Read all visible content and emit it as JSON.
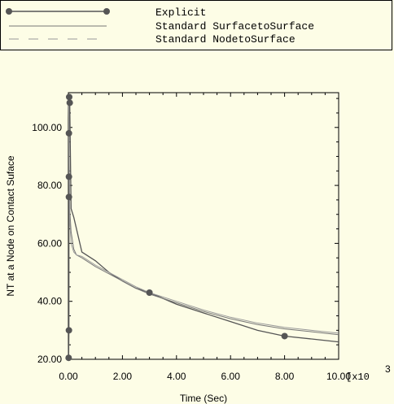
{
  "legend": [
    {
      "label": "Explicit"
    },
    {
      "label": "Standard SurfacetoSurface"
    },
    {
      "label": "Standard NodetoSurface"
    }
  ],
  "x_axis_multiplier": "[x10",
  "x_axis_multiplier_exp": "3",
  "colors": {
    "background": "#fdfde6",
    "explicit": "#555555",
    "surface_to_surface": "#777777",
    "node_to_surface": "#999999",
    "axis": "#000000"
  },
  "chart_data": {
    "type": "line",
    "title": "",
    "xlabel": "Time (Sec)",
    "ylabel": "NT at a Node on Contact Suface",
    "xlim": [
      0,
      10
    ],
    "ylim": [
      20,
      112
    ],
    "x_ticks": [
      "0.00",
      "2.00",
      "4.00",
      "6.00",
      "8.00",
      "10.00"
    ],
    "y_ticks": [
      "20.00",
      "40.00",
      "60.00",
      "80.00",
      "100.00"
    ],
    "series": [
      {
        "name": "Explicit",
        "x": [
          0.01,
          0.02,
          0.02,
          0.02,
          0.02,
          0.03,
          0.05,
          0.1,
          0.2,
          0.3,
          0.5,
          1.0,
          1.5,
          2.0,
          2.5,
          3.0,
          4.0,
          5.0,
          6.0,
          7.0,
          8.0,
          9.0,
          10.0
        ],
        "y": [
          20.5,
          30.0,
          76.0,
          83.0,
          98.0,
          110.5,
          108.5,
          72.0,
          69.0,
          65.0,
          57.0,
          54.0,
          50.0,
          47.0,
          44.5,
          43.0,
          39.0,
          36.0,
          33.0,
          30.0,
          28.0,
          27.0,
          26.0
        ],
        "markers_x": [
          0.01,
          0.02,
          0.02,
          0.02,
          0.02,
          0.03,
          0.05,
          3.0,
          8.0
        ],
        "markers_y": [
          20.5,
          30.0,
          76.0,
          83.0,
          98.0,
          110.5,
          108.5,
          43.0,
          28.0
        ]
      },
      {
        "name": "Standard SurfacetoSurface",
        "x": [
          0.01,
          0.05,
          0.1,
          0.2,
          0.3,
          0.5,
          1.0,
          1.5,
          2.0,
          2.5,
          3.0,
          4.0,
          5.0,
          6.0,
          7.0,
          8.0,
          9.0,
          10.0
        ],
        "y": [
          108.0,
          72.0,
          64.0,
          58.0,
          56.0,
          55.0,
          52.0,
          49.5,
          47.0,
          44.5,
          42.5,
          39.5,
          36.5,
          34.0,
          32.0,
          30.5,
          29.5,
          28.5
        ]
      },
      {
        "name": "Standard NodetoSurface",
        "x": [
          0.01,
          0.05,
          0.1,
          0.2,
          0.3,
          0.5,
          1.0,
          1.5,
          2.0,
          2.5,
          3.0,
          4.0,
          5.0,
          6.0,
          7.0,
          8.0,
          9.0,
          10.0
        ],
        "y": [
          108.0,
          68.0,
          60.0,
          57.0,
          56.0,
          55.5,
          52.5,
          50.0,
          47.5,
          45.0,
          43.0,
          40.0,
          37.0,
          34.5,
          32.5,
          31.0,
          30.0,
          29.0
        ]
      }
    ]
  }
}
